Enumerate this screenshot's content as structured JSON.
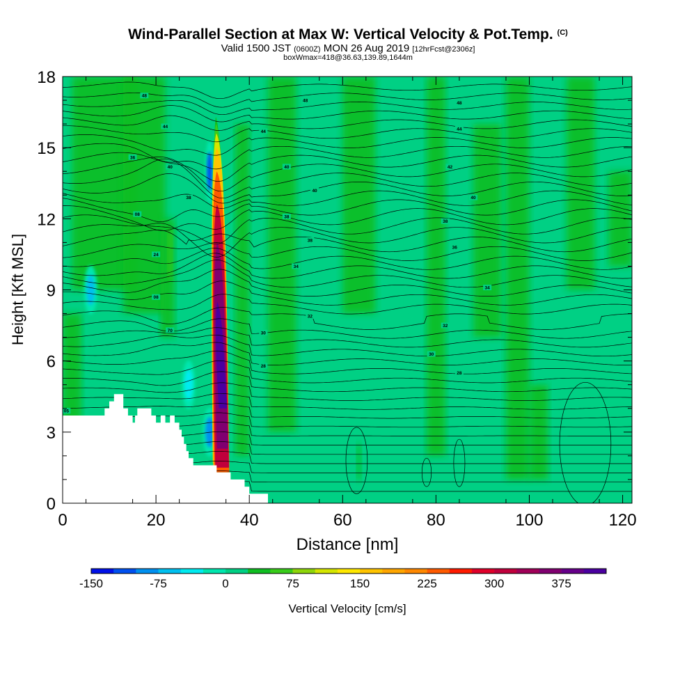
{
  "title": {
    "main": "Wind-Parallel Section at Max W: Vertical Velocity & Pot.Temp.",
    "copyright": "(C)",
    "valid_prefix": "Valid 1500 JST",
    "valid_utc": "(0600Z)",
    "valid_date": "MON 26 Aug 2019",
    "forecast": "[12hrFcst@2306z]",
    "box_max": "boxWmax=418@36.63,139.89,1644m"
  },
  "chart_data": {
    "type": "heatmap",
    "xlabel": "Distance [nm]",
    "ylabel": "Height [Kft MSL]",
    "xlim": [
      0,
      122
    ],
    "ylim": [
      0,
      18
    ],
    "x_ticks": [
      0,
      20,
      40,
      60,
      80,
      100,
      120
    ],
    "y_ticks": [
      0,
      3,
      6,
      9,
      12,
      15,
      18
    ],
    "grid": false,
    "colorbar": {
      "label": "Vertical Velocity [cm/s]",
      "tick_labels": [
        "-150",
        "-75",
        "0",
        "75",
        "150",
        "225",
        "300",
        "375"
      ],
      "tick_values": [
        -150,
        -75,
        0,
        75,
        150,
        225,
        300,
        375
      ],
      "min": -150,
      "max": 425,
      "step": 25,
      "colors": [
        "#0010e8",
        "#0050f0",
        "#0090f0",
        "#00c0f0",
        "#00ebf0",
        "#00e6ae",
        "#00d084",
        "#10be22",
        "#38cc1a",
        "#8ed60a",
        "#d4e600",
        "#ffe800",
        "#ffc400",
        "#ffa600",
        "#ff8800",
        "#ff5a00",
        "#ff1a00",
        "#e0002a",
        "#c0003c",
        "#a00058",
        "#800070",
        "#66008a",
        "#4a00a0"
      ]
    },
    "updraft": {
      "x_center": 33.5,
      "y_base": 1.0,
      "y_top": 16.0,
      "max_w": 418
    },
    "downdrafts": [
      {
        "x": 31.5,
        "y": 14.0,
        "w": -120
      },
      {
        "x": 31.5,
        "y": 3.0,
        "w": -90
      },
      {
        "x": 6,
        "y": 9.0,
        "w": -60
      },
      {
        "x": 27,
        "y": 5.0,
        "w": -30
      }
    ],
    "terrain": [
      [
        0,
        3.7
      ],
      [
        9,
        3.7
      ],
      [
        9,
        4.0
      ],
      [
        10,
        4.0
      ],
      [
        10,
        4.3
      ],
      [
        11,
        4.3
      ],
      [
        11,
        4.6
      ],
      [
        13,
        4.6
      ],
      [
        13,
        4.0
      ],
      [
        14,
        4.0
      ],
      [
        14,
        3.7
      ],
      [
        15,
        3.7
      ],
      [
        15,
        3.4
      ],
      [
        15.5,
        3.4
      ],
      [
        15.5,
        3.7
      ],
      [
        16,
        3.7
      ],
      [
        16,
        4.0
      ],
      [
        19,
        4.0
      ],
      [
        19,
        3.7
      ],
      [
        20,
        3.7
      ],
      [
        20,
        3.4
      ],
      [
        21,
        3.4
      ],
      [
        21,
        3.7
      ],
      [
        22,
        3.7
      ],
      [
        22,
        3.4
      ],
      [
        23,
        3.4
      ],
      [
        23,
        3.7
      ],
      [
        24,
        3.7
      ],
      [
        24,
        3.4
      ],
      [
        25,
        3.4
      ],
      [
        25,
        3.1
      ],
      [
        25.5,
        3.1
      ],
      [
        25.5,
        2.8
      ],
      [
        26,
        2.8
      ],
      [
        26,
        2.5
      ],
      [
        26.5,
        2.5
      ],
      [
        26.5,
        2.2
      ],
      [
        27,
        2.2
      ],
      [
        27,
        1.9
      ],
      [
        28,
        1.9
      ],
      [
        28,
        1.6
      ],
      [
        33,
        1.6
      ],
      [
        33,
        1.3
      ],
      [
        36,
        1.3
      ],
      [
        36,
        1.0
      ],
      [
        39,
        1.0
      ],
      [
        39,
        0.7
      ],
      [
        40,
        0.7
      ],
      [
        40,
        0.4
      ],
      [
        44,
        0.4
      ],
      [
        44,
        0.0
      ],
      [
        0,
        0.0
      ]
    ],
    "theta_contours_K": [
      305,
      306,
      307,
      308,
      309,
      310,
      311,
      312,
      313,
      314,
      315,
      316,
      317,
      318,
      319,
      320,
      321,
      322,
      323,
      324,
      325,
      326,
      327,
      328,
      329,
      330,
      331,
      332,
      333,
      334,
      335,
      336,
      337,
      338,
      339,
      340,
      341,
      342,
      343,
      344,
      345,
      346,
      347,
      348
    ],
    "theta_labels": [
      {
        "x": 0.8,
        "y": 3.9,
        "text": "05"
      },
      {
        "x": 17.5,
        "y": 17.2,
        "text": "48"
      },
      {
        "x": 52,
        "y": 17.0,
        "text": "48"
      },
      {
        "x": 85,
        "y": 16.9,
        "text": "48"
      },
      {
        "x": 22,
        "y": 15.9,
        "text": "44"
      },
      {
        "x": 43,
        "y": 15.7,
        "text": "44"
      },
      {
        "x": 85,
        "y": 15.8,
        "text": "44"
      },
      {
        "x": 15,
        "y": 14.6,
        "text": "36"
      },
      {
        "x": 23,
        "y": 14.2,
        "text": "40"
      },
      {
        "x": 48,
        "y": 14.2,
        "text": "40"
      },
      {
        "x": 83,
        "y": 14.2,
        "text": "42"
      },
      {
        "x": 27,
        "y": 12.9,
        "text": "38"
      },
      {
        "x": 54,
        "y": 13.2,
        "text": "40"
      },
      {
        "x": 88,
        "y": 12.9,
        "text": "40"
      },
      {
        "x": 16,
        "y": 12.2,
        "text": "08"
      },
      {
        "x": 48,
        "y": 12.1,
        "text": "38"
      },
      {
        "x": 82,
        "y": 11.9,
        "text": "38"
      },
      {
        "x": 53,
        "y": 11.1,
        "text": "38"
      },
      {
        "x": 84,
        "y": 10.8,
        "text": "36"
      },
      {
        "x": 20,
        "y": 10.5,
        "text": "24"
      },
      {
        "x": 50,
        "y": 10.0,
        "text": "34"
      },
      {
        "x": 91,
        "y": 9.1,
        "text": "34"
      },
      {
        "x": 20,
        "y": 8.7,
        "text": "08"
      },
      {
        "x": 53,
        "y": 7.9,
        "text": "32"
      },
      {
        "x": 23,
        "y": 7.3,
        "text": "70"
      },
      {
        "x": 43,
        "y": 7.2,
        "text": "30"
      },
      {
        "x": 82,
        "y": 7.5,
        "text": "32"
      },
      {
        "x": 79,
        "y": 6.3,
        "text": "30"
      },
      {
        "x": 43,
        "y": 5.8,
        "text": "28"
      },
      {
        "x": 85,
        "y": 5.5,
        "text": "28"
      }
    ]
  }
}
